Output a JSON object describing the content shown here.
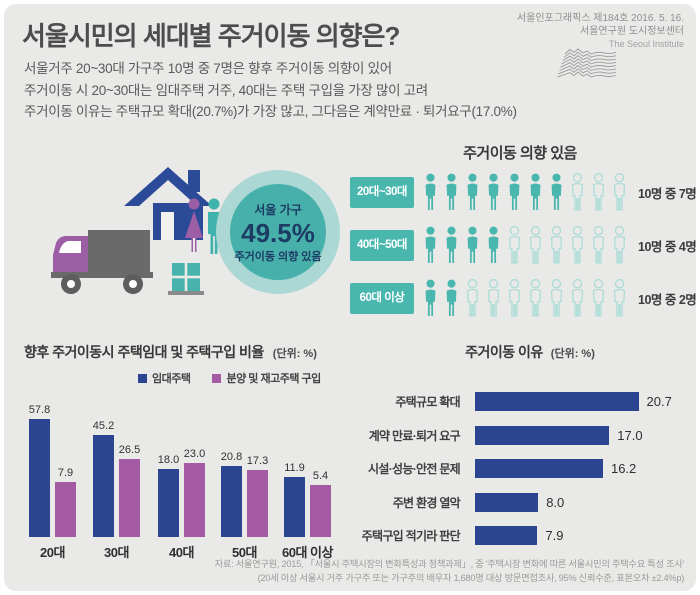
{
  "header": {
    "title": "서울시민의 세대별 주거이동 의향은?",
    "issue_line": "서울인포그래픽스 제184호 2016. 5. 16.",
    "org_line": "서울연구원 도시정보센터",
    "org_en": "The Seoul Institute"
  },
  "intro": {
    "line1": "서울거주 20~30대 가구주 10명 중 7명은 향후 주거이동 의향이 있어",
    "line2": "주거이동 시 20~30대는 임대주택 거주, 40대는 주택 구입을 가장 많이 고려",
    "line3": "주거이동 이유는 주택규모 확대(20.7%)가 가장 많고, 그다음은 계약만료 · 퇴거요구(17.0%)"
  },
  "highlight_circle": {
    "top": "서울 가구",
    "value": "49.5%",
    "bottom": "주거이동 의향 있음"
  },
  "colors": {
    "teal": "#4ab7af",
    "teal_light": "#a9dcd7",
    "navy": "#2b4590",
    "purple": "#a55ba3",
    "circle_outer": "#abd8d4",
    "circle_inner": "#47b0aa",
    "circle_text": "#1d3c64"
  },
  "chart_data": [
    {
      "name": "move-intention-by-age",
      "type": "pictogram",
      "title": "주거이동 의향 있음",
      "unit_total": 10,
      "rows": [
        {
          "label": "20대~30대",
          "count": 7,
          "caption": "10명 중 7명"
        },
        {
          "label": "40대~50대",
          "count": 4,
          "caption": "10명 중 4명"
        },
        {
          "label": "60대 이상",
          "count": 2,
          "caption": "10명 중 2명"
        }
      ]
    },
    {
      "name": "rent-vs-purchase-by-age",
      "type": "bar",
      "title": "향후 주거이동시 주택임대 및 주택구입 비율",
      "unit_label": "(단위: %)",
      "categories": [
        "20대",
        "30대",
        "40대",
        "50대",
        "60대 이상"
      ],
      "series": [
        {
          "name": "임대주택",
          "color": "#2b4590",
          "values": [
            57.8,
            45.2,
            18.0,
            20.8,
            11.9
          ]
        },
        {
          "name": "분양 및 재고주택 구입",
          "color": "#a55ba3",
          "values": [
            7.9,
            26.5,
            23.0,
            17.3,
            5.4
          ]
        }
      ],
      "legend_position": "top"
    },
    {
      "name": "move-reasons",
      "type": "bar",
      "orientation": "horizontal",
      "title": "주거이동 이유",
      "unit_label": "(단위: %)",
      "categories": [
        "주택규모 확대",
        "계약 만료·퇴거 요구",
        "시설·성능·안전 문제",
        "주변 환경 열악",
        "주택구입 적기라 판단"
      ],
      "values": [
        20.7,
        17.0,
        16.2,
        8.0,
        7.9
      ]
    }
  ],
  "footer": {
    "line1": "자료: 서울연구원, 2015, 「서울시 주택시장의 변화특성과 정책과제」, 중 '주택시장 변화에 따른 서울시민의 주택수요 특성 조사'",
    "line2": "(20세 이상 서울시 거주 가구주 또는 가구주의 배우자 1,680명 대상 방문면접조사, 95% 신뢰수준, 표본오차 ±2.4%p)"
  }
}
